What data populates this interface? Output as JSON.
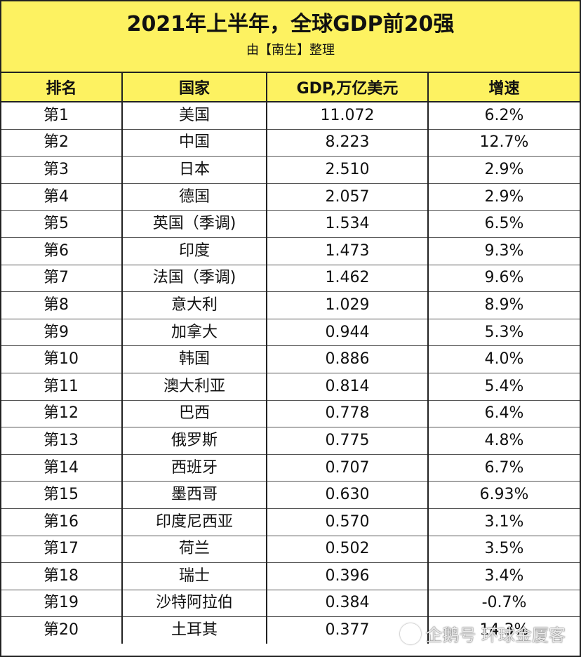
{
  "title": "2021年上半年，全球GDP前20强",
  "subtitle": "由【南生】整理",
  "columns": [
    "排名",
    "国家",
    "GDP,万亿美元",
    "增速"
  ],
  "rows": [
    {
      "rank": "第1",
      "country": "美国",
      "gdp": "11.072",
      "growth": "6.2%"
    },
    {
      "rank": "第2",
      "country": "中国",
      "gdp": "8.223",
      "growth": "12.7%"
    },
    {
      "rank": "第3",
      "country": "日本",
      "gdp": "2.510",
      "growth": "2.9%"
    },
    {
      "rank": "第4",
      "country": "德国",
      "gdp": "2.057",
      "growth": "2.9%"
    },
    {
      "rank": "第5",
      "country": "英国（季调)",
      "gdp": "1.534",
      "growth": "6.5%"
    },
    {
      "rank": "第6",
      "country": "印度",
      "gdp": "1.473",
      "growth": "9.3%"
    },
    {
      "rank": "第7",
      "country": "法国（季调)",
      "gdp": "1.462",
      "growth": "9.6%"
    },
    {
      "rank": "第8",
      "country": "意大利",
      "gdp": "1.029",
      "growth": "8.9%"
    },
    {
      "rank": "第9",
      "country": "加拿大",
      "gdp": "0.944",
      "growth": "5.3%"
    },
    {
      "rank": "第10",
      "country": "韩国",
      "gdp": "0.886",
      "growth": "4.0%"
    },
    {
      "rank": "第11",
      "country": "澳大利亚",
      "gdp": "0.814",
      "growth": "5.4%"
    },
    {
      "rank": "第12",
      "country": "巴西",
      "gdp": "0.778",
      "growth": "6.4%"
    },
    {
      "rank": "第13",
      "country": "俄罗斯",
      "gdp": "0.775",
      "growth": "4.8%"
    },
    {
      "rank": "第14",
      "country": "西班牙",
      "gdp": "0.707",
      "growth": "6.7%"
    },
    {
      "rank": "第15",
      "country": "墨西哥",
      "gdp": "0.630",
      "growth": "6.93%"
    },
    {
      "rank": "第16",
      "country": "印度尼西亚",
      "gdp": "0.570",
      "growth": "3.1%"
    },
    {
      "rank": "第17",
      "country": "荷兰",
      "gdp": "0.502",
      "growth": "3.5%"
    },
    {
      "rank": "第18",
      "country": "瑞士",
      "gdp": "0.396",
      "growth": "3.4%"
    },
    {
      "rank": "第19",
      "country": "沙特阿拉伯",
      "gdp": "0.384",
      "growth": "-0.7%"
    },
    {
      "rank": "第20",
      "country": "土耳其",
      "gdp": "0.377",
      "growth": "14.3%"
    }
  ],
  "watermark": "企鹅号 环球金厦客",
  "colors": {
    "header_bg": "#fdf261",
    "border": "#222222"
  }
}
